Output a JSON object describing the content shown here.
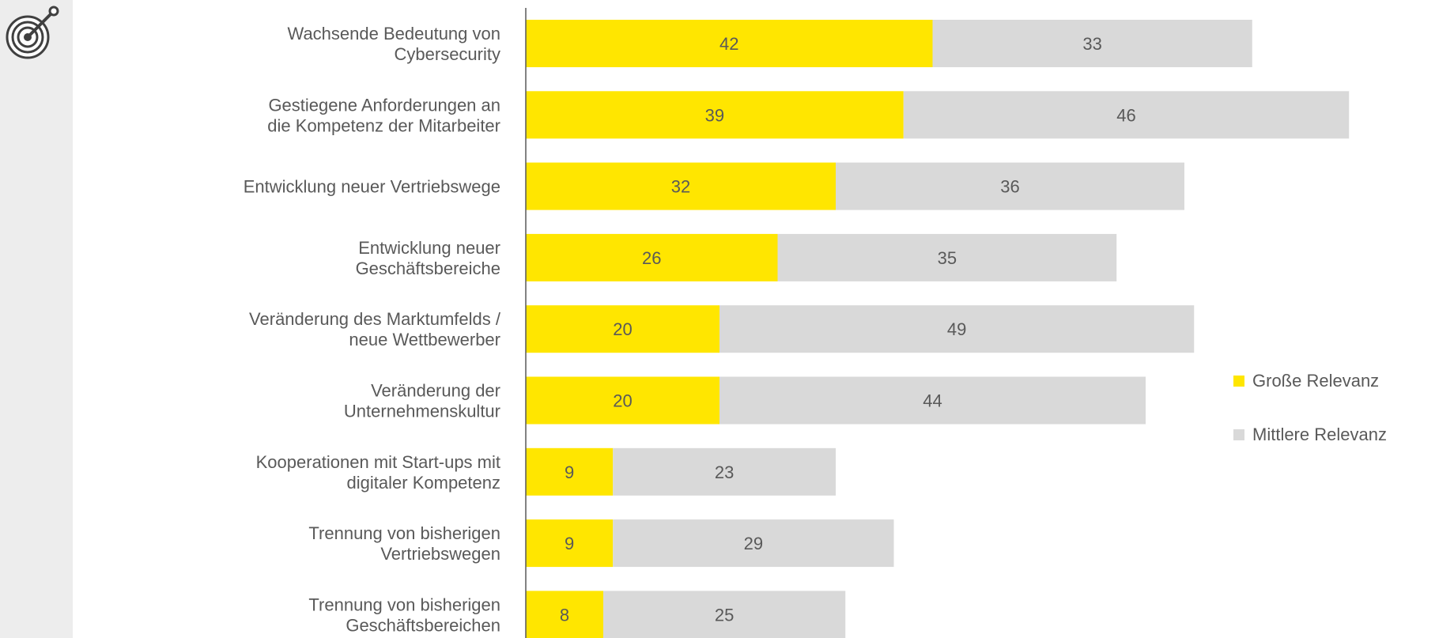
{
  "chart_data": {
    "type": "bar",
    "orientation": "horizontal",
    "stacked": true,
    "categories": [
      [
        "Wachsende Bedeutung von",
        "Cybersecurity"
      ],
      [
        "Gestiegene Anforderungen an",
        "die Kompetenz der Mitarbeiter"
      ],
      [
        "Entwicklung neuer Vertriebswege"
      ],
      [
        "Entwicklung neuer",
        "Geschäftsbereiche"
      ],
      [
        "Veränderung des Marktumfelds /",
        "neue Wettbewerber"
      ],
      [
        "Veränderung der",
        "Unternehmenskultur"
      ],
      [
        "Kooperationen mit Start-ups mit",
        "digitaler Kompetenz"
      ],
      [
        "Trennung von bisherigen",
        "Vertriebswegen"
      ],
      [
        "Trennung von bisherigen",
        "Geschäftsbereichen"
      ]
    ],
    "series": [
      {
        "name": "Große Relevanz",
        "color": "#ffe600",
        "values": [
          42,
          39,
          32,
          26,
          20,
          20,
          9,
          9,
          8
        ]
      },
      {
        "name": "Mittlere Relevanz",
        "color": "#d9d9d9",
        "values": [
          33,
          46,
          36,
          35,
          49,
          44,
          23,
          29,
          25
        ]
      }
    ],
    "xlim": [
      0,
      90
    ],
    "grid": false,
    "legend_position": "right",
    "title": "",
    "xlabel": "",
    "ylabel": ""
  },
  "icons": {
    "side": "target-icon"
  },
  "colors": {
    "axis": "#595959",
    "text": "#595959",
    "panel": "#ededed"
  }
}
